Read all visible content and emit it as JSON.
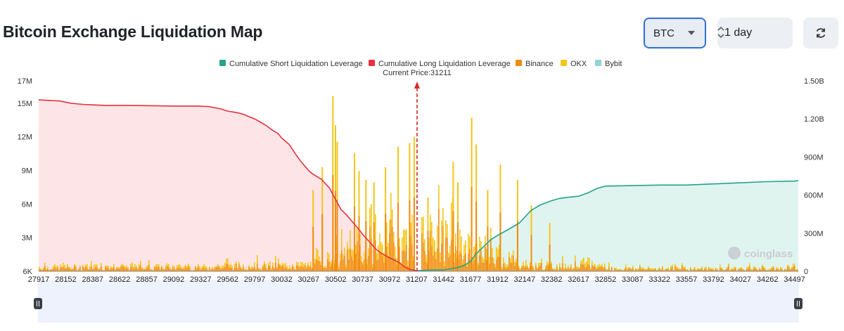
{
  "page": {
    "title": "Bitcoin Exchange Liquidation Map"
  },
  "controls": {
    "symbol": "BTC",
    "period": "1 day"
  },
  "icons": {
    "refresh": "refresh-icon",
    "dropdown": "chevron-down-icon",
    "updown": "updown-icon",
    "brand": "coinglass-logo-icon"
  },
  "colors": {
    "short": "#22a38a",
    "long": "#e5323e",
    "binance": "#f28c0f",
    "okx": "#f5c518",
    "bybit": "#8fd3dc",
    "long_fill": "#fde5e7",
    "short_fill": "#e0f4ef",
    "slider": "#eef2fd"
  },
  "watermark": "coinglass",
  "chart_data": {
    "type": "bar",
    "title": "Bitcoin Exchange Liquidation Map",
    "legend": [
      {
        "name": "Cumulative Short Liquidation Leverage",
        "color": "#22a38a"
      },
      {
        "name": "Cumulative Long Liquidation Leverage",
        "color": "#e5323e"
      },
      {
        "name": "Binance",
        "color": "#f28c0f"
      },
      {
        "name": "OKX",
        "color": "#f5c518"
      },
      {
        "name": "Bybit",
        "color": "#8fd3dc"
      }
    ],
    "current_price": {
      "label": "Current Price:31211",
      "value": 31211
    },
    "x_ticks": [
      "27917",
      "28152",
      "28387",
      "28622",
      "28857",
      "29092",
      "29327",
      "29562",
      "29797",
      "30032",
      "30267",
      "30502",
      "30737",
      "30972",
      "31207",
      "31442",
      "31677",
      "31912",
      "32147",
      "32382",
      "32617",
      "32852",
      "33087",
      "33322",
      "33557",
      "33792",
      "34027",
      "34262",
      "34497"
    ],
    "xlim": [
      27917,
      34530
    ],
    "left_axis": {
      "ticks": [
        "17M",
        "15M",
        "12M",
        "9M",
        "6M",
        "3M",
        "6K"
      ],
      "values": [
        17,
        15,
        12,
        9,
        6,
        3,
        0.006
      ],
      "ylim": [
        0,
        17
      ],
      "unit": "M"
    },
    "right_axis": {
      "ticks": [
        "1.50B",
        "1.20B",
        "900M",
        "600M",
        "300M",
        "0"
      ],
      "values": [
        1500,
        1200,
        900,
        600,
        300,
        0
      ],
      "ylim": [
        0,
        1500
      ],
      "unit": "M"
    },
    "cumulative_long": {
      "x": [
        27917,
        28100,
        28200,
        28300,
        28400,
        28500,
        28700,
        28900,
        29100,
        29300,
        29400,
        29500,
        29560,
        29650,
        29700,
        29797,
        29850,
        29900,
        29950,
        30000,
        30032,
        30100,
        30150,
        30200,
        30267,
        30300,
        30380,
        30450,
        30502,
        30550,
        30600,
        30650,
        30700,
        30737,
        30800,
        30850,
        30900,
        30972,
        31050,
        31100,
        31150,
        31207
      ],
      "values": [
        15.3,
        15.2,
        15.0,
        14.9,
        14.85,
        14.8,
        14.8,
        14.78,
        14.75,
        14.75,
        14.7,
        14.5,
        14.3,
        14.15,
        14.0,
        13.6,
        13.3,
        13.0,
        12.6,
        12.3,
        11.9,
        11.3,
        10.5,
        9.8,
        9.0,
        8.7,
        8.2,
        7.4,
        6.4,
        5.5,
        5.0,
        4.4,
        3.8,
        3.3,
        2.6,
        2.0,
        1.6,
        1.2,
        0.8,
        0.4,
        0.15,
        0.05
      ]
    },
    "cumulative_short": {
      "x": [
        31211,
        31300,
        31442,
        31550,
        31620,
        31677,
        31720,
        31800,
        31850,
        31912,
        32000,
        32100,
        32147,
        32200,
        32280,
        32382,
        32450,
        32520,
        32617,
        32700,
        32780,
        32852,
        33087,
        33322,
        33557,
        33792,
        34027,
        34262,
        34497,
        34530
      ],
      "values": [
        0.05,
        0.1,
        0.12,
        0.3,
        0.5,
        0.9,
        1.5,
        2.3,
        2.8,
        3.2,
        3.7,
        4.3,
        4.8,
        5.4,
        5.9,
        6.3,
        6.5,
        6.6,
        6.7,
        7.0,
        7.4,
        7.6,
        7.65,
        7.7,
        7.7,
        7.8,
        7.9,
        8.0,
        8.05,
        8.1
      ]
    },
    "exchange_bars": {
      "note": "Values in millions (right axis), approximate readings of visible peaks; Binance/OKX/Bybit stacked",
      "peaks": [
        {
          "x": 30472,
          "value": 1380
        },
        {
          "x": 30495,
          "value": 1150
        },
        {
          "x": 30510,
          "value": 1020
        },
        {
          "x": 30380,
          "value": 820
        },
        {
          "x": 30300,
          "value": 640
        },
        {
          "x": 30660,
          "value": 930
        },
        {
          "x": 30700,
          "value": 790
        },
        {
          "x": 30760,
          "value": 720
        },
        {
          "x": 30830,
          "value": 700
        },
        {
          "x": 30930,
          "value": 820
        },
        {
          "x": 31040,
          "value": 980
        },
        {
          "x": 31140,
          "value": 1010
        },
        {
          "x": 31180,
          "value": 1060
        },
        {
          "x": 31300,
          "value": 580
        },
        {
          "x": 31520,
          "value": 860
        },
        {
          "x": 31560,
          "value": 700
        },
        {
          "x": 31680,
          "value": 1210
        },
        {
          "x": 31720,
          "value": 1000
        },
        {
          "x": 31820,
          "value": 640
        },
        {
          "x": 31930,
          "value": 840
        },
        {
          "x": 32080,
          "value": 720
        },
        {
          "x": 32200,
          "value": 520
        },
        {
          "x": 32360,
          "value": 380
        }
      ]
    }
  }
}
